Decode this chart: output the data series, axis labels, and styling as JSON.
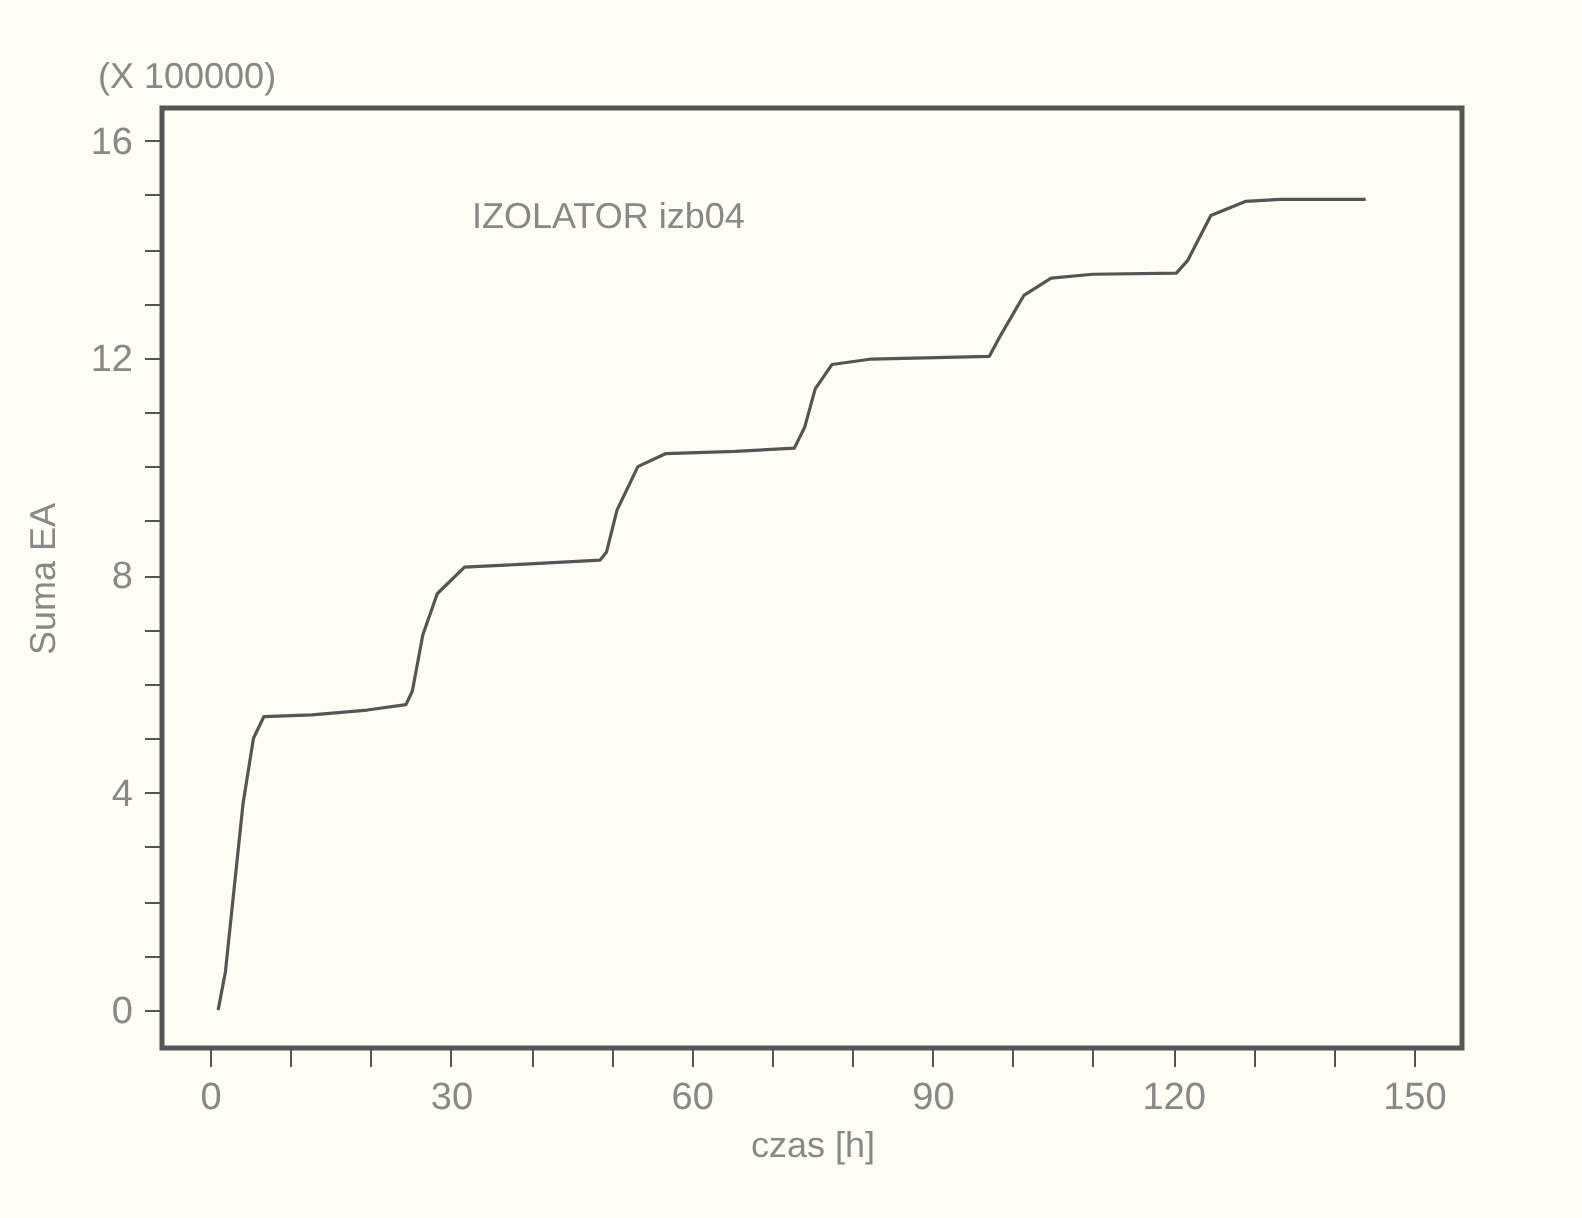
{
  "chart_data": {
    "type": "line",
    "xlabel": "czas [h]",
    "ylabel": "Suma EA",
    "annotations": [
      "(X 100000)",
      "IZOLATOR izb04"
    ],
    "xlim": [
      -6,
      156
    ],
    "ylim": [
      -0.7,
      16.6
    ],
    "xticks": [
      0,
      {
        "value": 10,
        "label": null
      },
      {
        "value": 20,
        "label": null
      },
      30,
      {
        "value": 40,
        "label": null
      },
      {
        "value": 50,
        "label": null
      },
      60,
      {
        "value": 70,
        "label": null
      },
      {
        "value": 80,
        "label": null
      },
      90,
      {
        "value": 100,
        "label": null
      },
      {
        "value": 110,
        "label": null
      },
      120,
      {
        "value": 130,
        "label": null
      },
      {
        "value": 140,
        "label": null
      },
      150
    ],
    "yticks": [
      0,
      {
        "value": 1,
        "label": null
      },
      {
        "value": 2,
        "label": null
      },
      {
        "value": 3,
        "label": null
      },
      4,
      {
        "value": 5,
        "label": null
      },
      {
        "value": 6,
        "label": null
      },
      {
        "value": 7,
        "label": null
      },
      8,
      {
        "value": 9,
        "label": null
      },
      {
        "value": 10,
        "label": null
      },
      {
        "value": 11,
        "label": null
      },
      12,
      {
        "value": 13,
        "label": null
      },
      {
        "value": 14,
        "label": null
      },
      {
        "value": 15,
        "label": null
      },
      16
    ],
    "grid": false,
    "marker": "none",
    "line_style": "solid",
    "series": [
      {
        "color": "#555555",
        "x": [
          1.0,
          1.9,
          4.1,
          5.4,
          6.7,
          12.7,
          19.6,
          24.4,
          25.2,
          26.5,
          28.3,
          31.7,
          38.6,
          48.6,
          49.4,
          50.7,
          53.3,
          56.8,
          65.4,
          72.8,
          74.1,
          75.4,
          77.5,
          82.4,
          97.1,
          98.4,
          101.4,
          104.8,
          110.0,
          120.4,
          121.8,
          124.7,
          129.0,
          133.3,
          144.0
        ],
        "values": [
          0,
          0.7,
          3.8,
          5.0,
          5.4,
          5.43,
          5.52,
          5.62,
          5.87,
          6.9,
          7.66,
          8.15,
          8.2,
          8.28,
          8.43,
          9.2,
          10.0,
          10.24,
          10.28,
          10.34,
          10.73,
          11.43,
          11.88,
          11.98,
          12.03,
          12.39,
          13.15,
          13.47,
          13.54,
          13.56,
          13.79,
          14.62,
          14.88,
          14.92,
          14.92
        ]
      }
    ]
  }
}
